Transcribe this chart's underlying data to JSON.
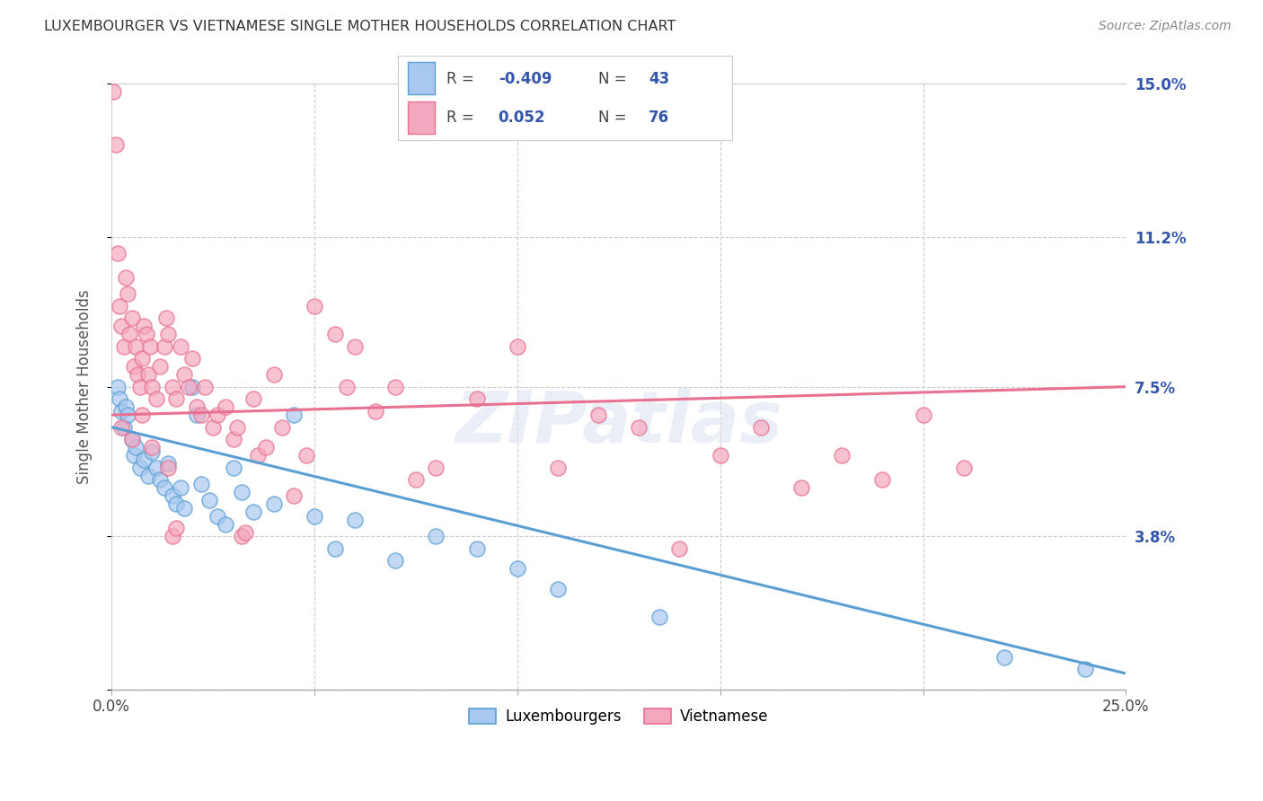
{
  "title": "LUXEMBOURGER VS VIETNAMESE SINGLE MOTHER HOUSEHOLDS CORRELATION CHART",
  "source": "Source: ZipAtlas.com",
  "xlabel_vals": [
    0.0,
    5.0,
    10.0,
    15.0,
    20.0,
    25.0
  ],
  "xlabel_ticks": [
    "0.0%",
    "",
    "",
    "",
    "",
    "25.0%"
  ],
  "ylabel": "Single Mother Households",
  "ytick_vals": [
    0.0,
    3.8,
    7.5,
    11.2,
    15.0
  ],
  "right_ytick_labels": [
    "15.0%",
    "11.2%",
    "7.5%",
    "3.8%"
  ],
  "right_ytick_vals": [
    15.0,
    11.2,
    7.5,
    3.8
  ],
  "xlim": [
    0.0,
    25.0
  ],
  "ylim": [
    0.0,
    15.0
  ],
  "lux_R": -0.409,
  "lux_N": 43,
  "viet_R": 0.052,
  "viet_N": 76,
  "lux_color": "#a8c8f0",
  "viet_color": "#f4a8c0",
  "lux_edge_color": "#5a9fd4",
  "viet_edge_color": "#e87090",
  "lux_line_color": "#5a9fd4",
  "viet_line_color": "#e87090",
  "watermark": "ZIPatlas",
  "legend_text_color": "#3355aa",
  "lux_line_y0": 6.5,
  "lux_line_y1": 0.4,
  "viet_line_y0": 6.8,
  "viet_line_y1": 7.5,
  "lux_scatter": [
    [
      0.15,
      7.5
    ],
    [
      0.2,
      7.2
    ],
    [
      0.25,
      6.9
    ],
    [
      0.3,
      6.5
    ],
    [
      0.35,
      7.0
    ],
    [
      0.4,
      6.8
    ],
    [
      0.5,
      6.2
    ],
    [
      0.55,
      5.8
    ],
    [
      0.6,
      6.0
    ],
    [
      0.7,
      5.5
    ],
    [
      0.8,
      5.7
    ],
    [
      0.9,
      5.3
    ],
    [
      1.0,
      5.9
    ],
    [
      1.1,
      5.5
    ],
    [
      1.2,
      5.2
    ],
    [
      1.3,
      5.0
    ],
    [
      1.4,
      5.6
    ],
    [
      1.5,
      4.8
    ],
    [
      1.6,
      4.6
    ],
    [
      1.7,
      5.0
    ],
    [
      1.8,
      4.5
    ],
    [
      2.0,
      7.5
    ],
    [
      2.1,
      6.8
    ],
    [
      2.2,
      5.1
    ],
    [
      2.4,
      4.7
    ],
    [
      2.6,
      4.3
    ],
    [
      2.8,
      4.1
    ],
    [
      3.0,
      5.5
    ],
    [
      3.2,
      4.9
    ],
    [
      3.5,
      4.4
    ],
    [
      4.0,
      4.6
    ],
    [
      4.5,
      6.8
    ],
    [
      5.0,
      4.3
    ],
    [
      5.5,
      3.5
    ],
    [
      6.0,
      4.2
    ],
    [
      7.0,
      3.2
    ],
    [
      8.0,
      3.8
    ],
    [
      9.0,
      3.5
    ],
    [
      10.0,
      3.0
    ],
    [
      11.0,
      2.5
    ],
    [
      13.5,
      1.8
    ],
    [
      22.0,
      0.8
    ],
    [
      24.0,
      0.5
    ]
  ],
  "viet_scatter": [
    [
      0.05,
      14.8
    ],
    [
      0.1,
      13.5
    ],
    [
      0.15,
      10.8
    ],
    [
      0.2,
      9.5
    ],
    [
      0.25,
      9.0
    ],
    [
      0.3,
      8.5
    ],
    [
      0.35,
      10.2
    ],
    [
      0.4,
      9.8
    ],
    [
      0.45,
      8.8
    ],
    [
      0.5,
      9.2
    ],
    [
      0.55,
      8.0
    ],
    [
      0.6,
      8.5
    ],
    [
      0.65,
      7.8
    ],
    [
      0.7,
      7.5
    ],
    [
      0.75,
      8.2
    ],
    [
      0.8,
      9.0
    ],
    [
      0.85,
      8.8
    ],
    [
      0.9,
      7.8
    ],
    [
      0.95,
      8.5
    ],
    [
      1.0,
      7.5
    ],
    [
      1.1,
      7.2
    ],
    [
      1.2,
      8.0
    ],
    [
      1.3,
      8.5
    ],
    [
      1.35,
      9.2
    ],
    [
      1.4,
      8.8
    ],
    [
      1.5,
      7.5
    ],
    [
      1.6,
      7.2
    ],
    [
      1.7,
      8.5
    ],
    [
      1.8,
      7.8
    ],
    [
      1.9,
      7.5
    ],
    [
      2.0,
      8.2
    ],
    [
      2.1,
      7.0
    ],
    [
      2.2,
      6.8
    ],
    [
      2.3,
      7.5
    ],
    [
      2.5,
      6.5
    ],
    [
      2.6,
      6.8
    ],
    [
      2.8,
      7.0
    ],
    [
      3.0,
      6.2
    ],
    [
      3.1,
      6.5
    ],
    [
      3.2,
      3.8
    ],
    [
      3.3,
      3.9
    ],
    [
      3.5,
      7.2
    ],
    [
      3.6,
      5.8
    ],
    [
      3.8,
      6.0
    ],
    [
      4.0,
      7.8
    ],
    [
      4.2,
      6.5
    ],
    [
      4.5,
      4.8
    ],
    [
      4.8,
      5.8
    ],
    [
      5.0,
      9.5
    ],
    [
      5.5,
      8.8
    ],
    [
      5.8,
      7.5
    ],
    [
      6.0,
      8.5
    ],
    [
      6.5,
      6.9
    ],
    [
      7.0,
      7.5
    ],
    [
      7.5,
      5.2
    ],
    [
      8.0,
      5.5
    ],
    [
      9.0,
      7.2
    ],
    [
      10.0,
      8.5
    ],
    [
      11.0,
      5.5
    ],
    [
      12.0,
      6.8
    ],
    [
      13.0,
      6.5
    ],
    [
      14.0,
      3.5
    ],
    [
      15.0,
      5.8
    ],
    [
      16.0,
      6.5
    ],
    [
      17.0,
      5.0
    ],
    [
      18.0,
      5.8
    ],
    [
      19.0,
      5.2
    ],
    [
      20.0,
      6.8
    ],
    [
      21.0,
      5.5
    ],
    [
      0.25,
      6.5
    ],
    [
      0.5,
      6.2
    ],
    [
      0.75,
      6.8
    ],
    [
      1.0,
      6.0
    ],
    [
      1.4,
      5.5
    ],
    [
      1.5,
      3.8
    ],
    [
      1.6,
      4.0
    ]
  ]
}
